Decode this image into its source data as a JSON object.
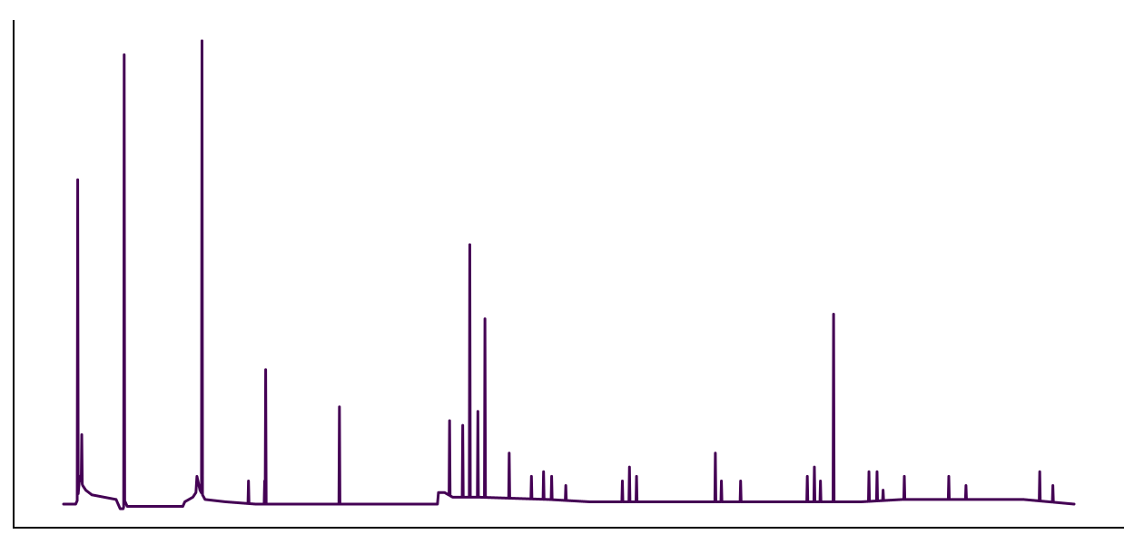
{
  "chart_data": {
    "type": "line",
    "title": "",
    "xlabel": "",
    "ylabel": "",
    "xlim": [
      0,
      1000
    ],
    "ylim": [
      -2,
      100
    ],
    "grid": false,
    "legend": "none",
    "series": [
      {
        "color": "#440154",
        "baseline": [
          [
            0,
            0
          ],
          [
            12,
            0
          ],
          [
            14,
            1
          ],
          [
            16,
            6
          ],
          [
            19,
            4
          ],
          [
            22,
            3
          ],
          [
            28,
            2
          ],
          [
            52,
            1
          ],
          [
            56,
            -1
          ],
          [
            59,
            -1
          ],
          [
            61,
            0.5
          ],
          [
            63,
            -0.5
          ],
          [
            100,
            -0.5
          ],
          [
            118,
            -0.5
          ],
          [
            120,
            0.5
          ],
          [
            124,
            1
          ],
          [
            128,
            1.5
          ],
          [
            131,
            2.5
          ],
          [
            132,
            6
          ],
          [
            135,
            3
          ],
          [
            140,
            1
          ],
          [
            160,
            0.5
          ],
          [
            190,
            0
          ],
          [
            220,
            0
          ],
          [
            240,
            0
          ],
          [
            290,
            0
          ],
          [
            300,
            0
          ],
          [
            370,
            0
          ],
          [
            371,
            2.5
          ],
          [
            377,
            2.5
          ],
          [
            385,
            1.5
          ],
          [
            410,
            1.5
          ],
          [
            480,
            1
          ],
          [
            520,
            0.5
          ],
          [
            540,
            0.5
          ],
          [
            560,
            0.5
          ],
          [
            660,
            0.5
          ],
          [
            700,
            0.5
          ],
          [
            710,
            0.5
          ],
          [
            740,
            0.5
          ],
          [
            790,
            0.5
          ],
          [
            830,
            1
          ],
          [
            860,
            1
          ],
          [
            900,
            1
          ],
          [
            950,
            1
          ],
          [
            1000,
            0
          ]
        ],
        "peaks": [
          [
            14,
            70
          ],
          [
            18,
            15
          ],
          [
            60,
            97
          ],
          [
            137,
            100
          ],
          [
            183,
            5
          ],
          [
            199,
            5
          ],
          [
            200,
            29
          ],
          [
            273,
            21
          ],
          [
            382,
            18
          ],
          [
            395,
            17
          ],
          [
            402,
            56
          ],
          [
            410,
            20
          ],
          [
            417,
            40
          ],
          [
            441,
            11
          ],
          [
            463,
            6
          ],
          [
            475,
            7
          ],
          [
            483,
            6
          ],
          [
            497,
            4
          ],
          [
            553,
            5
          ],
          [
            560,
            8
          ],
          [
            567,
            6
          ],
          [
            645,
            11
          ],
          [
            651,
            5
          ],
          [
            670,
            5
          ],
          [
            736,
            6
          ],
          [
            743,
            8
          ],
          [
            749,
            5
          ],
          [
            762,
            41
          ],
          [
            797,
            7
          ],
          [
            805,
            7
          ],
          [
            811,
            3
          ],
          [
            832,
            6
          ],
          [
            876,
            6
          ],
          [
            893,
            4
          ],
          [
            966,
            7
          ],
          [
            979,
            4
          ]
        ]
      }
    ]
  }
}
